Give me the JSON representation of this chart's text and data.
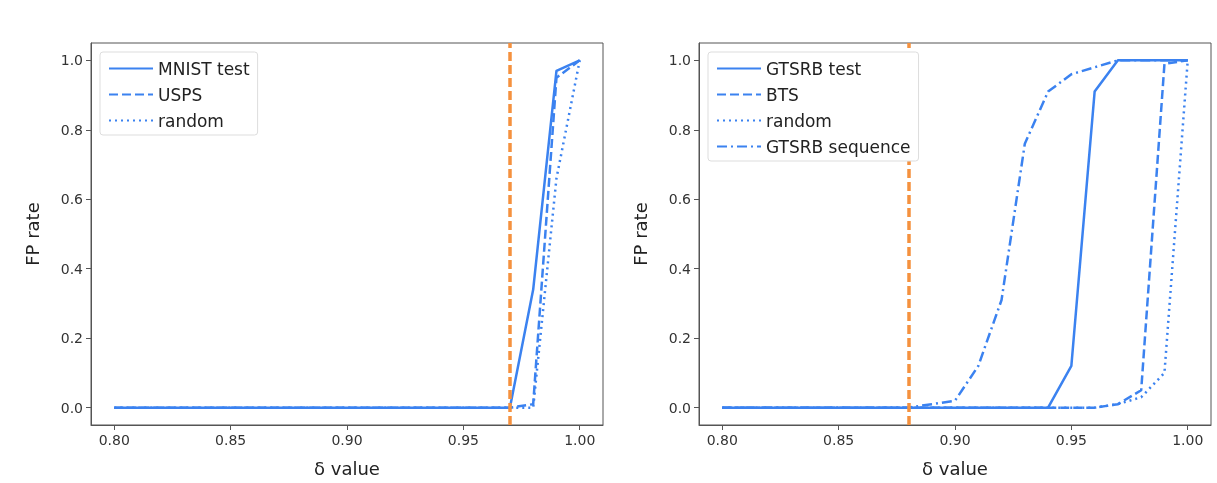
{
  "chart_data": [
    {
      "type": "line",
      "xlabel": "δ value",
      "ylabel": "FP rate",
      "xlim": [
        0.79,
        1.01
      ],
      "ylim": [
        -0.05,
        1.05
      ],
      "xticks": [
        {
          "value": 0.8,
          "label": "0.80"
        },
        {
          "value": 0.85,
          "label": "0.85"
        },
        {
          "value": 0.9,
          "label": "0.90"
        },
        {
          "value": 0.95,
          "label": "0.95"
        },
        {
          "value": 1.0,
          "label": "1.00"
        }
      ],
      "yticks": [
        {
          "value": 0,
          "label": "0.0"
        },
        {
          "value": 0.2,
          "label": "0.2"
        },
        {
          "value": 0.4,
          "label": "0.4"
        },
        {
          "value": 0.6,
          "label": "0.6"
        },
        {
          "value": 0.8,
          "label": "0.8"
        },
        {
          "value": 1.0,
          "label": "1.0"
        }
      ],
      "x": [
        0.8,
        0.81,
        0.82,
        0.83,
        0.84,
        0.85,
        0.86,
        0.87,
        0.88,
        0.89,
        0.9,
        0.91,
        0.92,
        0.93,
        0.94,
        0.95,
        0.96,
        0.97,
        0.98,
        0.99,
        1.0
      ],
      "series": [
        {
          "name": "MNIST test",
          "color": "#3b82f0",
          "line_style": "solid",
          "values": [
            0,
            0,
            0,
            0,
            0,
            0,
            0,
            0,
            0,
            0,
            0,
            0,
            0,
            0,
            0,
            0,
            0,
            0,
            0.34,
            0.97,
            1.0
          ]
        },
        {
          "name": "USPS",
          "color": "#3b82f0",
          "line_style": "dashed",
          "values": [
            0,
            0,
            0,
            0,
            0,
            0,
            0,
            0,
            0,
            0,
            0,
            0,
            0,
            0,
            0,
            0,
            0,
            0,
            0.01,
            0.95,
            1.0
          ]
        },
        {
          "name": "random",
          "color": "#3b82f0",
          "line_style": "dotted",
          "values": [
            0,
            0,
            0,
            0,
            0,
            0,
            0,
            0,
            0,
            0,
            0,
            0,
            0,
            0,
            0,
            0,
            0,
            0,
            0,
            0.66,
            1.0
          ]
        }
      ],
      "ref_lines": [
        {
          "axis": "x",
          "value": 0.97,
          "color": "#f5913e",
          "line_style": "dashed"
        }
      ],
      "legend": "top left",
      "grid": false,
      "marker": "none"
    },
    {
      "type": "line",
      "xlabel": "δ value",
      "ylabel": "FP rate",
      "xlim": [
        0.79,
        1.01
      ],
      "ylim": [
        -0.05,
        1.05
      ],
      "xticks": [
        {
          "value": 0.8,
          "label": "0.80"
        },
        {
          "value": 0.85,
          "label": "0.85"
        },
        {
          "value": 0.9,
          "label": "0.90"
        },
        {
          "value": 0.95,
          "label": "0.95"
        },
        {
          "value": 1.0,
          "label": "1.00"
        }
      ],
      "yticks": [
        {
          "value": 0,
          "label": "0.0"
        },
        {
          "value": 0.2,
          "label": "0.2"
        },
        {
          "value": 0.4,
          "label": "0.4"
        },
        {
          "value": 0.6,
          "label": "0.6"
        },
        {
          "value": 0.8,
          "label": "0.8"
        },
        {
          "value": 1.0,
          "label": "1.0"
        }
      ],
      "x": [
        0.8,
        0.81,
        0.82,
        0.83,
        0.84,
        0.85,
        0.86,
        0.87,
        0.88,
        0.89,
        0.9,
        0.91,
        0.92,
        0.93,
        0.94,
        0.95,
        0.96,
        0.97,
        0.98,
        0.99,
        1.0
      ],
      "series": [
        {
          "name": "GTSRB test",
          "color": "#3b82f0",
          "line_style": "solid",
          "values": [
            0,
            0,
            0,
            0,
            0,
            0,
            0,
            0,
            0,
            0,
            0,
            0,
            0,
            0,
            0,
            0.12,
            0.91,
            1.0,
            1.0,
            1.0,
            1.0
          ]
        },
        {
          "name": "BTS",
          "color": "#3b82f0",
          "line_style": "dashed",
          "values": [
            0,
            0,
            0,
            0,
            0,
            0,
            0,
            0,
            0,
            0,
            0,
            0,
            0,
            0,
            0,
            0,
            0,
            0.01,
            0.05,
            0.99,
            1.0
          ]
        },
        {
          "name": "random",
          "color": "#3b82f0",
          "line_style": "dotted",
          "values": [
            0,
            0,
            0,
            0,
            0,
            0,
            0,
            0,
            0,
            0,
            0,
            0,
            0,
            0,
            0,
            0,
            0,
            0.01,
            0.03,
            0.1,
            1.0
          ]
        },
        {
          "name": "GTSRB sequence",
          "color": "#3b82f0",
          "line_style": "dashdot",
          "values": [
            0,
            0,
            0,
            0,
            0,
            0,
            0,
            0,
            0,
            0.01,
            0.02,
            0.12,
            0.31,
            0.76,
            0.91,
            0.96,
            0.98,
            1.0,
            1.0,
            1.0,
            1.0
          ]
        }
      ],
      "ref_lines": [
        {
          "axis": "x",
          "value": 0.88,
          "color": "#f5913e",
          "line_style": "dashed"
        }
      ],
      "legend": "top left",
      "grid": false,
      "marker": "none"
    }
  ]
}
